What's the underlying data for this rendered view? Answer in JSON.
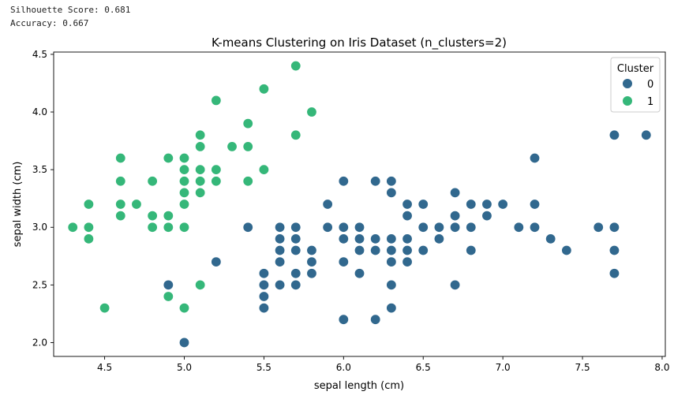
{
  "metrics": {
    "silhouette": "Silhouette Score: 0.681",
    "accuracy": "Accuracy: 0.667"
  },
  "colors": {
    "cluster_0": "#31688e",
    "cluster_1": "#35b779"
  },
  "chart_data": {
    "type": "scatter",
    "title": "K-means Clustering on Iris Dataset (n_clusters=2)",
    "xlabel": "sepal length (cm)",
    "ylabel": "sepal width (cm)",
    "xlim": [
      4.18,
      8.02
    ],
    "ylim": [
      1.88,
      4.52
    ],
    "xticks": [
      4.5,
      5.0,
      5.5,
      6.0,
      6.5,
      7.0,
      7.5,
      8.0
    ],
    "yticks": [
      2.0,
      2.5,
      3.0,
      3.5,
      4.0,
      4.5
    ],
    "xtick_labels": [
      "4.5",
      "5.0",
      "5.5",
      "6.0",
      "6.5",
      "7.0",
      "7.5",
      "8.0"
    ],
    "ytick_labels": [
      "2.0",
      "2.5",
      "3.0",
      "3.5",
      "4.0",
      "4.5"
    ],
    "legend": {
      "title": "Cluster",
      "position": "top-right",
      "labels": [
        "0",
        "1"
      ]
    },
    "series": [
      {
        "name": "0",
        "color": "#31688e",
        "points": [
          [
            4.9,
            2.5
          ],
          [
            5.0,
            2.0
          ],
          [
            5.2,
            2.7
          ],
          [
            5.4,
            3.0
          ],
          [
            5.5,
            2.3
          ],
          [
            5.5,
            2.4
          ],
          [
            5.5,
            2.5
          ],
          [
            5.5,
            2.6
          ],
          [
            5.6,
            2.5
          ],
          [
            5.6,
            2.7
          ],
          [
            5.6,
            2.8
          ],
          [
            5.6,
            2.9
          ],
          [
            5.6,
            3.0
          ],
          [
            5.7,
            2.5
          ],
          [
            5.7,
            2.6
          ],
          [
            5.7,
            2.8
          ],
          [
            5.7,
            2.9
          ],
          [
            5.7,
            3.0
          ],
          [
            5.8,
            2.6
          ],
          [
            5.8,
            2.7
          ],
          [
            5.8,
            2.8
          ],
          [
            5.9,
            3.0
          ],
          [
            5.9,
            3.2
          ],
          [
            6.0,
            2.2
          ],
          [
            6.0,
            2.7
          ],
          [
            6.0,
            2.9
          ],
          [
            6.0,
            3.0
          ],
          [
            6.0,
            3.4
          ],
          [
            6.1,
            2.6
          ],
          [
            6.1,
            2.8
          ],
          [
            6.1,
            2.9
          ],
          [
            6.1,
            3.0
          ],
          [
            6.2,
            2.2
          ],
          [
            6.2,
            2.8
          ],
          [
            6.2,
            2.9
          ],
          [
            6.2,
            3.4
          ],
          [
            6.3,
            2.3
          ],
          [
            6.3,
            2.5
          ],
          [
            6.3,
            2.7
          ],
          [
            6.3,
            2.8
          ],
          [
            6.3,
            2.9
          ],
          [
            6.3,
            3.3
          ],
          [
            6.3,
            3.4
          ],
          [
            6.4,
            2.7
          ],
          [
            6.4,
            2.8
          ],
          [
            6.4,
            2.9
          ],
          [
            6.4,
            3.1
          ],
          [
            6.4,
            3.2
          ],
          [
            6.5,
            2.8
          ],
          [
            6.5,
            3.0
          ],
          [
            6.5,
            3.2
          ],
          [
            6.6,
            2.9
          ],
          [
            6.6,
            3.0
          ],
          [
            6.7,
            2.5
          ],
          [
            6.7,
            3.0
          ],
          [
            6.7,
            3.1
          ],
          [
            6.7,
            3.3
          ],
          [
            6.8,
            2.8
          ],
          [
            6.8,
            3.0
          ],
          [
            6.8,
            3.2
          ],
          [
            6.9,
            3.1
          ],
          [
            6.9,
            3.2
          ],
          [
            7.0,
            3.2
          ],
          [
            7.1,
            3.0
          ],
          [
            7.2,
            3.0
          ],
          [
            7.2,
            3.2
          ],
          [
            7.2,
            3.6
          ],
          [
            7.3,
            2.9
          ],
          [
            7.4,
            2.8
          ],
          [
            7.6,
            3.0
          ],
          [
            7.7,
            2.6
          ],
          [
            7.7,
            2.8
          ],
          [
            7.7,
            3.0
          ],
          [
            7.7,
            3.8
          ],
          [
            7.9,
            3.8
          ]
        ]
      },
      {
        "name": "1",
        "color": "#35b779",
        "points": [
          [
            4.3,
            3.0
          ],
          [
            4.4,
            2.9
          ],
          [
            4.4,
            3.0
          ],
          [
            4.4,
            3.2
          ],
          [
            4.5,
            2.3
          ],
          [
            4.6,
            3.1
          ],
          [
            4.6,
            3.2
          ],
          [
            4.6,
            3.4
          ],
          [
            4.6,
            3.6
          ],
          [
            4.7,
            3.2
          ],
          [
            4.8,
            3.0
          ],
          [
            4.8,
            3.1
          ],
          [
            4.8,
            3.4
          ],
          [
            4.9,
            2.4
          ],
          [
            4.9,
            3.0
          ],
          [
            4.9,
            3.1
          ],
          [
            4.9,
            3.6
          ],
          [
            5.0,
            2.3
          ],
          [
            5.0,
            3.0
          ],
          [
            5.0,
            3.2
          ],
          [
            5.0,
            3.3
          ],
          [
            5.0,
            3.4
          ],
          [
            5.0,
            3.5
          ],
          [
            5.0,
            3.6
          ],
          [
            5.1,
            2.5
          ],
          [
            5.1,
            3.3
          ],
          [
            5.1,
            3.4
          ],
          [
            5.1,
            3.5
          ],
          [
            5.1,
            3.7
          ],
          [
            5.1,
            3.8
          ],
          [
            5.2,
            3.4
          ],
          [
            5.2,
            3.5
          ],
          [
            5.2,
            4.1
          ],
          [
            5.3,
            3.7
          ],
          [
            5.4,
            3.4
          ],
          [
            5.4,
            3.7
          ],
          [
            5.4,
            3.9
          ],
          [
            5.5,
            3.5
          ],
          [
            5.5,
            4.2
          ],
          [
            5.7,
            3.8
          ],
          [
            5.7,
            4.4
          ],
          [
            5.8,
            4.0
          ]
        ]
      }
    ]
  }
}
